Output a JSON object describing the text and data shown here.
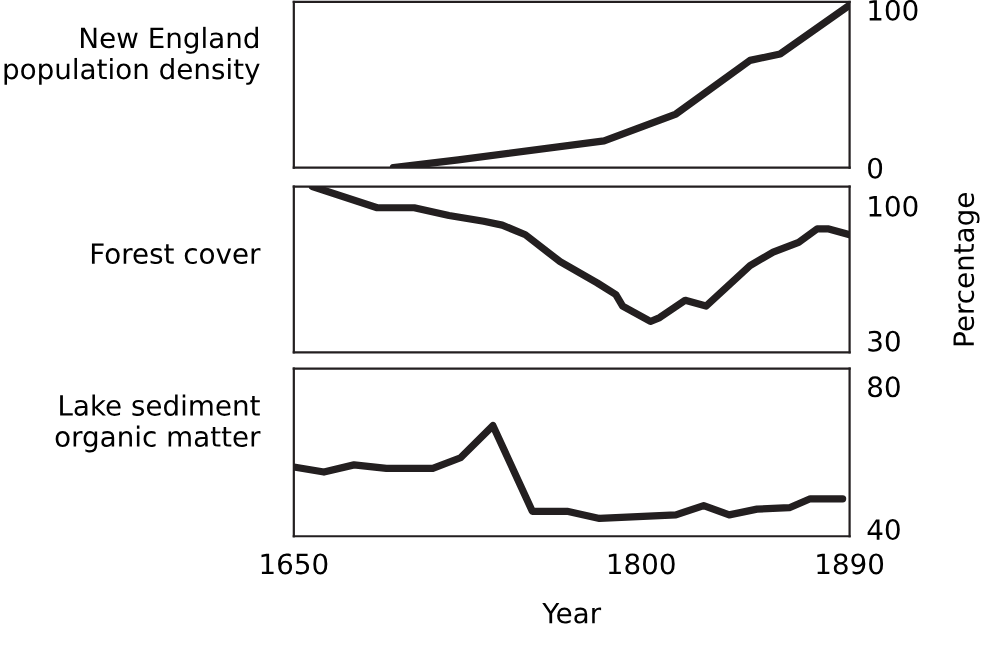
{
  "chart_data": [
    {
      "type": "line",
      "title": "New England\npopulation density",
      "x": [
        1693,
        1721,
        1784,
        1815,
        1847,
        1860,
        1889
      ],
      "series": [
        {
          "color": "#231f20",
          "values": [
            0,
            5,
            17,
            34,
            68,
            72,
            102
          ]
        }
      ],
      "xlim": [
        1650,
        1890
      ],
      "ylim": [
        0,
        105
      ],
      "yticks": [
        0,
        100
      ],
      "tick_labels": "y",
      "grid": false,
      "legend": false
    },
    {
      "type": "line",
      "title": "Forest cover",
      "ylabel": "Percentage",
      "x": [
        1658,
        1686,
        1702,
        1717,
        1732,
        1740,
        1750,
        1765,
        1781,
        1789,
        1792,
        1804,
        1808,
        1819,
        1828,
        1847,
        1857,
        1868,
        1876,
        1881,
        1890
      ],
      "series": [
        {
          "color": "#231f20",
          "values": [
            110,
            99,
            99,
            95,
            92,
            90,
            85,
            71,
            60,
            54,
            48,
            40,
            42,
            51,
            48,
            69,
            76,
            81,
            88,
            88,
            85
          ]
        }
      ],
      "xlim": [
        1650,
        1890
      ],
      "ylim": [
        24,
        110
      ],
      "yticks": [
        30,
        100
      ],
      "tick_labels": "y",
      "grid": false,
      "legend": false
    },
    {
      "type": "line",
      "title": "Lake sediment\norganic matter",
      "xlabel": "Year",
      "x": [
        1650,
        1663,
        1676,
        1690,
        1710,
        1722,
        1736,
        1753,
        1768,
        1782,
        1815,
        1827,
        1838,
        1850,
        1864,
        1873,
        1887
      ],
      "series": [
        {
          "color": "#231f20",
          "values": [
            57.4,
            56,
            58,
            57,
            57,
            60,
            69,
            45,
            45,
            43,
            44,
            46.6,
            44,
            45.6,
            46,
            48.5,
            48.5
          ]
        }
      ],
      "xlim": [
        1650,
        1890
      ],
      "xticks": [
        1650,
        1800,
        1890
      ],
      "ylim": [
        38,
        85
      ],
      "yticks": [
        40,
        80
      ],
      "grid": false,
      "legend": false
    }
  ]
}
